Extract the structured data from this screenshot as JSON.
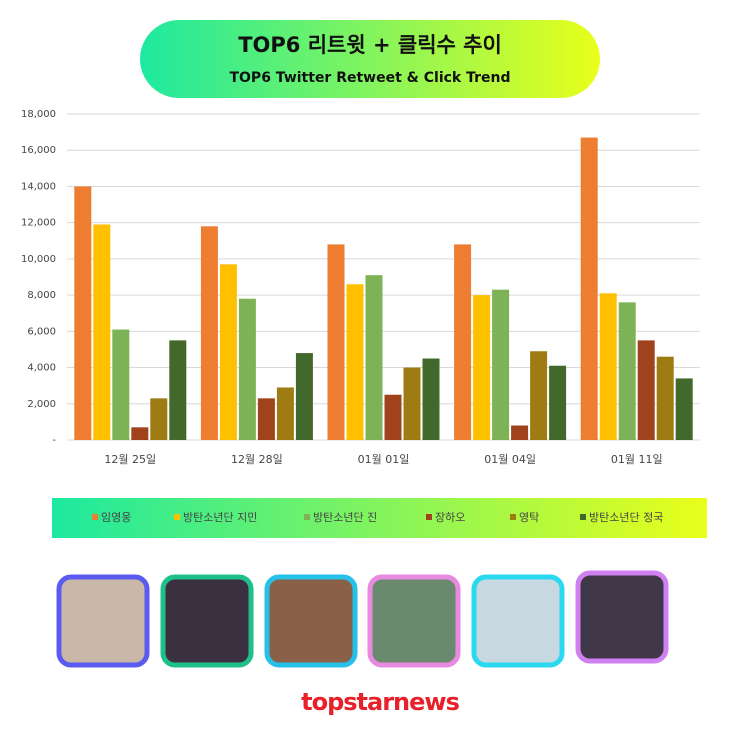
{
  "chart_data": {
    "type": "bar",
    "title": "TOP6 리트윗 + 클릭수 추이",
    "subtitle": "TOP6 Twitter Retweet & Click Trend",
    "categories": [
      "12월 25일",
      "12월 28일",
      "01월 01일",
      "01월 04일",
      "01월 11일"
    ],
    "series": [
      {
        "name": "임영웅",
        "color": "#ed7d31",
        "values": [
          14000,
          11800,
          10800,
          10800,
          16700
        ]
      },
      {
        "name": "방탄소년단 지민",
        "color": "#ffc000",
        "values": [
          11900,
          9700,
          8600,
          8000,
          8100
        ]
      },
      {
        "name": "방탄소년단 진",
        "color": "#7db356",
        "values": [
          6100,
          7800,
          9100,
          8300,
          7600
        ]
      },
      {
        "name": "장하오",
        "color": "#a0431c",
        "values": [
          700,
          2300,
          2500,
          800,
          5500
        ]
      },
      {
        "name": "영탁",
        "color": "#9e7b13",
        "values": [
          2300,
          2900,
          4000,
          4900,
          4600
        ]
      },
      {
        "name": "방탄소년단 정국",
        "color": "#43682b",
        "values": [
          5500,
          4800,
          4500,
          4100,
          3400
        ]
      }
    ],
    "ylim": [
      0,
      18000
    ],
    "yticks": [
      {
        "value": 0,
        "label": "-"
      },
      {
        "value": 2000,
        "label": "2,000"
      },
      {
        "value": 4000,
        "label": "4,000"
      },
      {
        "value": 6000,
        "label": "6,000"
      },
      {
        "value": 8000,
        "label": "8,000"
      },
      {
        "value": 10000,
        "label": "10,000"
      },
      {
        "value": 12000,
        "label": "12,000"
      },
      {
        "value": 14000,
        "label": "14,000"
      },
      {
        "value": 16000,
        "label": "16,000"
      },
      {
        "value": 18000,
        "label": "18,000"
      }
    ],
    "grid": true,
    "legend": "bottom"
  },
  "footer": {
    "logo": "topstarnews"
  }
}
